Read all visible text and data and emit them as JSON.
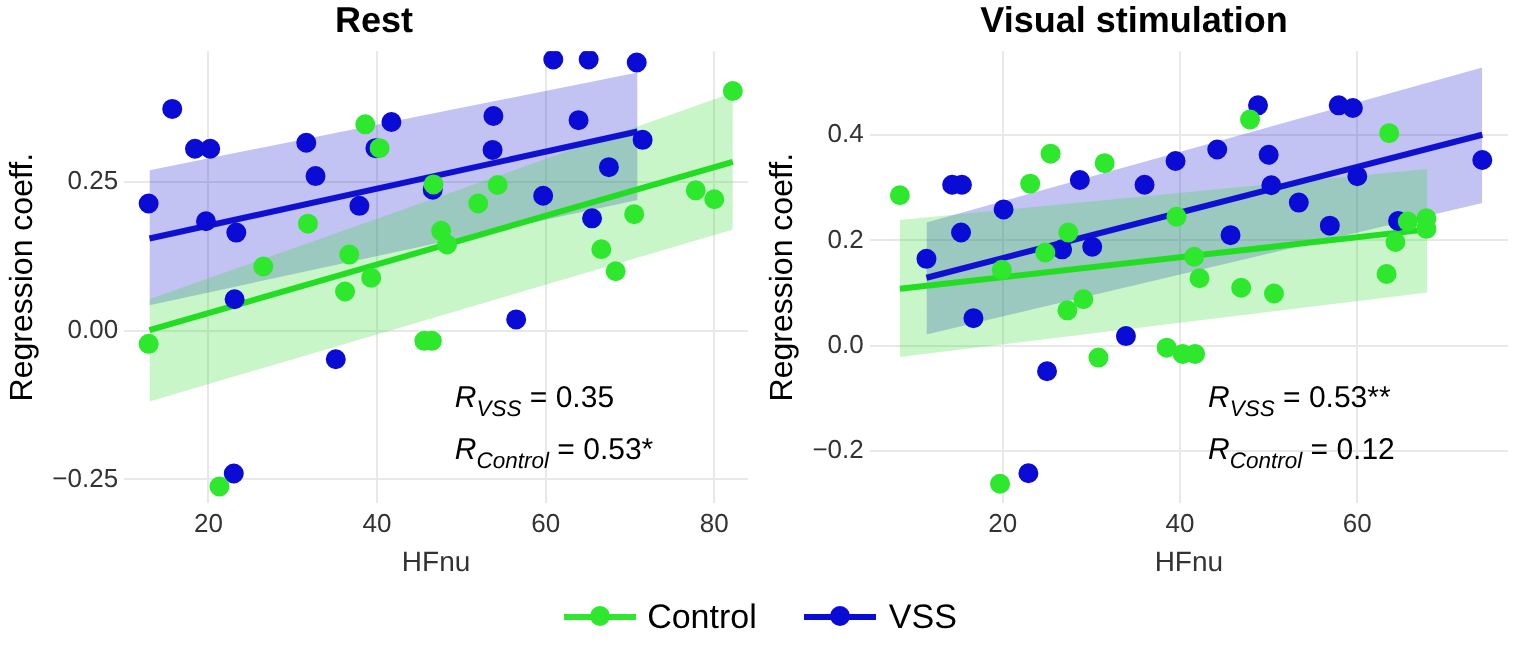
{
  "chart_data": [
    {
      "type": "scatter",
      "title": "Rest",
      "xlabel": "HFnu",
      "ylabel": "Regression coeff.",
      "xlim": [
        10,
        84
      ],
      "ylim": [
        -0.29,
        0.47
      ],
      "xticks": [
        20,
        40,
        60,
        80
      ],
      "yticks": [
        {
          "value": -0.25,
          "label": "−0.25"
        },
        {
          "value": 0,
          "label": "0.00"
        },
        {
          "value": 0.25,
          "label": "0.25"
        }
      ],
      "grid": true,
      "legend": "bottom",
      "annotations": [
        "R$_{VSS}$ = 0.35",
        "R$_{Control}$ = 0.53*"
      ],
      "series": [
        {
          "type": "line",
          "marker": "none",
          "color": "#22dd22",
          "x": [
            13.0,
            82.2
          ],
          "values": [
            0.001,
            0.284
          ],
          "lower": [
            -0.119,
            0.17
          ],
          "upper": [
            0.053,
            0.4
          ]
        },
        {
          "type": "line",
          "marker": "none",
          "color": "#1010d0",
          "x": [
            13.0,
            70.9
          ],
          "values": [
            0.155,
            0.335
          ],
          "lower": [
            0.043,
            0.22
          ],
          "upper": [
            0.27,
            0.434
          ]
        },
        {
          "marker": "circle",
          "name": "Control",
          "color": "#2ee82e",
          "x": [
            12.9,
            21.3,
            26.5,
            31.8,
            38.6,
            40.3,
            36.7,
            36.2,
            39.3,
            45.6,
            46.5,
            46.7,
            47.6,
            48.3,
            52.0,
            54.3,
            66.6,
            68.3,
            70.5,
            77.8,
            80.0,
            82.2
          ],
          "values": [
            -0.022,
            -0.262,
            0.108,
            0.18,
            0.347,
            0.307,
            0.128,
            0.066,
            0.089,
            -0.017,
            -0.017,
            0.246,
            0.168,
            0.145,
            0.214,
            0.245,
            0.137,
            0.1,
            0.196,
            0.236,
            0.221,
            0.403
          ]
        },
        {
          "marker": "circle",
          "name": "VSS",
          "color": "#0b0bd6",
          "x": [
            12.9,
            15.7,
            18.4,
            20.2,
            19.7,
            23.3,
            23.1,
            23.0,
            31.6,
            32.7,
            35.1,
            37.9,
            39.8,
            41.7,
            46.6,
            53.8,
            53.7,
            56.5,
            59.7,
            60.9,
            63.9,
            65.1,
            65.5,
            67.5,
            70.8,
            71.5
          ],
          "values": [
            0.214,
            0.373,
            0.306,
            0.306,
            0.184,
            0.165,
            0.053,
            -0.24,
            0.316,
            0.26,
            -0.048,
            0.21,
            0.307,
            0.351,
            0.237,
            0.361,
            0.304,
            0.019,
            0.227,
            0.456,
            0.354,
            0.456,
            0.189,
            0.275,
            0.451,
            0.321
          ]
        }
      ]
    },
    {
      "type": "scatter",
      "title": "Visual stimulation",
      "xlabel": "HFnu",
      "ylabel": "Regression coeff.",
      "xlim": [
        5,
        77
      ],
      "ylim": [
        -0.3,
        0.56
      ],
      "xticks": [
        20,
        40,
        60
      ],
      "yticks": [
        {
          "value": -0.2,
          "label": "−0.2"
        },
        {
          "value": 0,
          "label": "0.0"
        },
        {
          "value": 0.2,
          "label": "0.2"
        },
        {
          "value": 0.4,
          "label": "0.4"
        }
      ],
      "grid": true,
      "annotations": [
        "R$_{VSS}$ = 0.53**",
        "R$_{Control}$ = 0.12"
      ],
      "series": [
        {
          "type": "line",
          "marker": "none",
          "color": "#22dd22",
          "x": [
            8.4,
            67.9
          ],
          "values": [
            0.108,
            0.221
          ],
          "lower": [
            -0.022,
            0.101
          ],
          "upper": [
            0.239,
            0.336
          ]
        },
        {
          "type": "line",
          "marker": "none",
          "color": "#1010d0",
          "x": [
            11.4,
            74.1
          ],
          "values": [
            0.129,
            0.401
          ],
          "lower": [
            0.021,
            0.271
          ],
          "upper": [
            0.234,
            0.529
          ]
        },
        {
          "marker": "circle",
          "color": "#2ee82e",
          "x": [
            8.4,
            19.7,
            19.9,
            23.1,
            24.8,
            25.4,
            27.3,
            27.4,
            29.1,
            30.8,
            31.5,
            38.5,
            39.6,
            40.3,
            41.7,
            41.6,
            42.2,
            46.9,
            47.9,
            50.6,
            63.3,
            63.6,
            64.3,
            65.7,
            67.8,
            67.8
          ],
          "values": [
            0.286,
            -0.263,
            0.144,
            0.308,
            0.177,
            0.365,
            0.067,
            0.215,
            0.088,
            -0.023,
            0.347,
            -0.004,
            0.245,
            -0.016,
            -0.016,
            0.169,
            0.128,
            0.11,
            0.43,
            0.099,
            0.136,
            0.404,
            0.197,
            0.236,
            0.242,
            0.222
          ]
        },
        {
          "marker": "circle",
          "color": "#0b0bd6",
          "x": [
            11.4,
            14.3,
            15.4,
            15.3,
            16.7,
            20.1,
            22.9,
            25.0,
            26.7,
            28.7,
            30.1,
            33.9,
            36.0,
            39.5,
            44.2,
            45.7,
            48.8,
            50.0,
            50.3,
            53.4,
            56.9,
            57.9,
            59.5,
            60.0,
            64.6,
            74.1
          ],
          "values": [
            0.165,
            0.306,
            0.306,
            0.215,
            0.052,
            0.259,
            -0.243,
            -0.049,
            0.183,
            0.315,
            0.188,
            0.018,
            0.306,
            0.351,
            0.373,
            0.21,
            0.457,
            0.363,
            0.305,
            0.272,
            0.228,
            0.457,
            0.452,
            0.322,
            0.237,
            0.353
          ]
        }
      ]
    }
  ]
}
